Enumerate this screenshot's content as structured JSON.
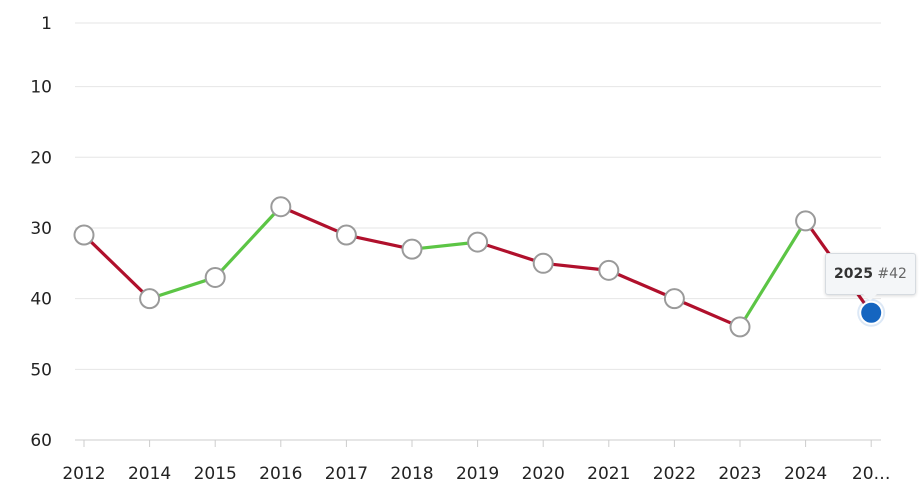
{
  "chart_data": {
    "type": "line",
    "title": "",
    "xlabel": "",
    "ylabel": "",
    "y_axis": {
      "reversed": true,
      "range": [
        1,
        60
      ],
      "ticks": [
        1,
        10,
        20,
        30,
        40,
        50,
        60
      ]
    },
    "categories": [
      "2012",
      "2014",
      "2015",
      "2016",
      "2017",
      "2018",
      "2019",
      "2020",
      "2021",
      "2022",
      "2023",
      "2024",
      "20…"
    ],
    "values": [
      31,
      40,
      37,
      27,
      31,
      33,
      32,
      35,
      36,
      40,
      44,
      29,
      42
    ],
    "grid": true,
    "colors": {
      "improved": "#5cc545",
      "declined": "#b0102c",
      "point_fill": "#ffffff",
      "point_stroke": "#9a9a9a",
      "highlight": "#1565c0",
      "grid": "#e6e6e6",
      "axis": "#cccccc"
    },
    "highlight_index": 12,
    "tooltip": {
      "year": "2025",
      "rank": "#42"
    }
  }
}
